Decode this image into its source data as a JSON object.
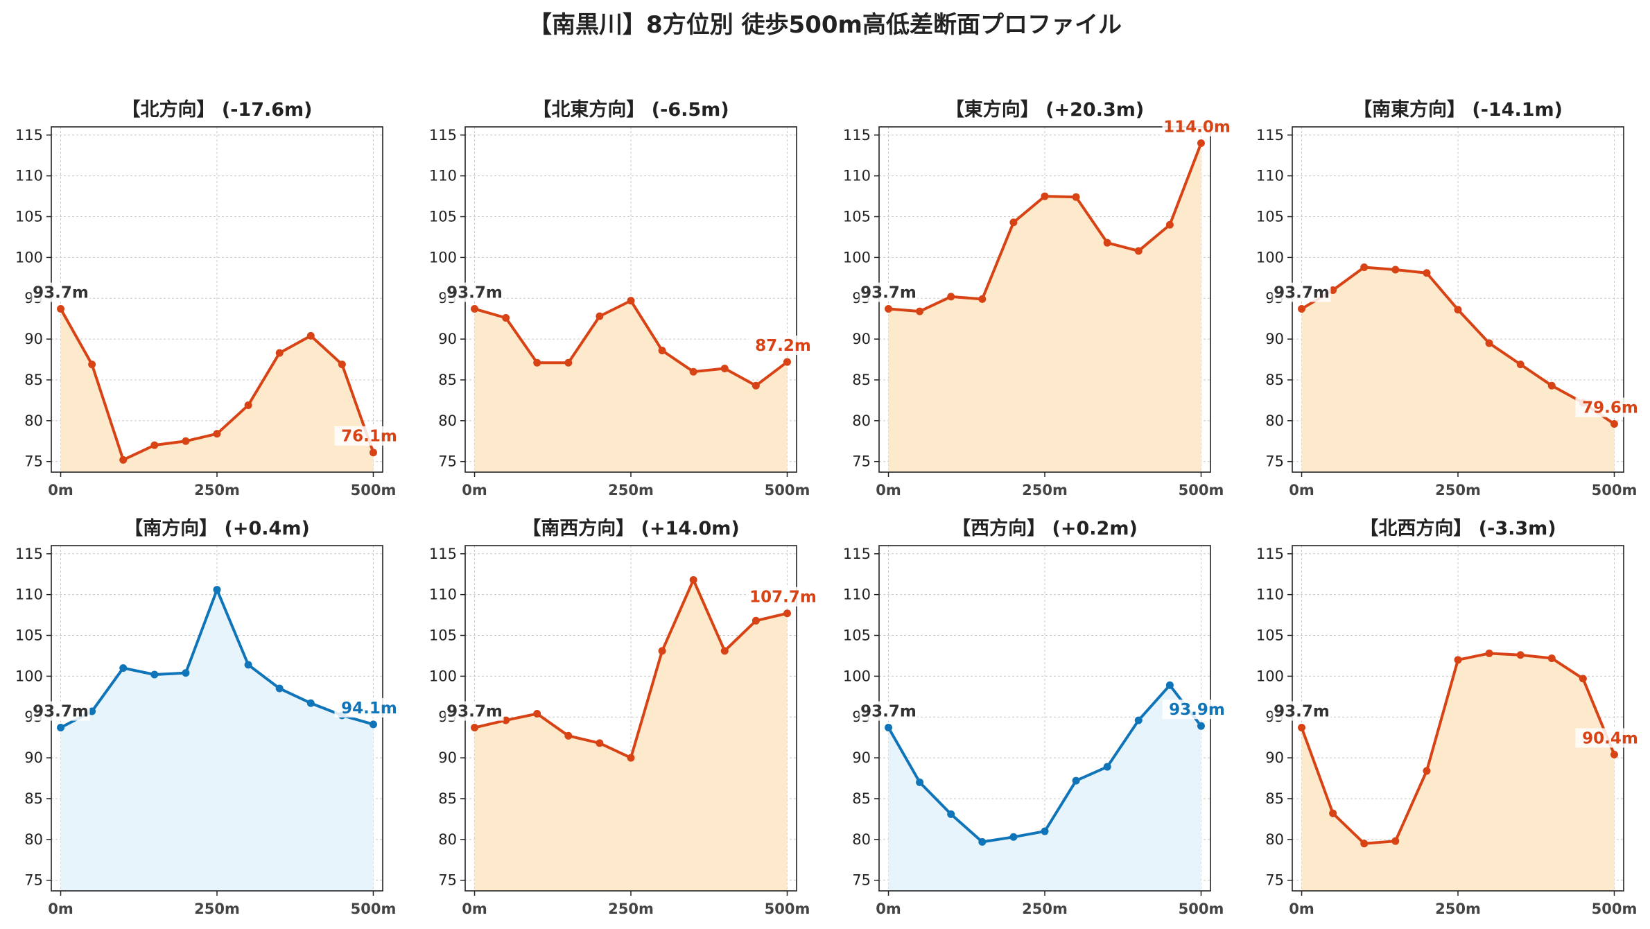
{
  "figure": {
    "title": "【南黒川】8方位別 徒歩500m高低差断面プロファイル"
  },
  "colors": {
    "down_line": "#d84315",
    "down_fill": "#fde9cc",
    "up_line": "#0f74b8",
    "up_fill": "#e8f4fb",
    "start_label": "#333333",
    "grid": "#c8c8c8",
    "axis": "#222222"
  },
  "chart_data": [
    {
      "type": "line",
      "title": "【北方向】 (-17.6m)",
      "style": "down",
      "x": [
        0,
        50,
        100,
        150,
        200,
        250,
        300,
        350,
        400,
        450,
        500
      ],
      "y": [
        93.7,
        86.9,
        75.2,
        77.0,
        77.5,
        78.4,
        81.9,
        88.3,
        90.4,
        86.9,
        76.1
      ],
      "xticks": [
        "0m",
        "250m",
        "500m"
      ],
      "yticks": [
        75,
        80,
        85,
        90,
        95,
        100,
        105,
        110,
        115
      ],
      "xlim": [
        -15,
        515
      ],
      "ylim": [
        73.7,
        116.0
      ],
      "grid": true,
      "start_label": "93.7m",
      "end_label": "76.1m"
    },
    {
      "type": "line",
      "title": "【北東方向】 (-6.5m)",
      "style": "down",
      "x": [
        0,
        50,
        100,
        150,
        200,
        250,
        300,
        350,
        400,
        450,
        500
      ],
      "y": [
        93.7,
        92.6,
        87.1,
        87.1,
        92.8,
        94.7,
        88.6,
        86.0,
        86.4,
        84.3,
        87.2
      ],
      "xticks": [
        "0m",
        "250m",
        "500m"
      ],
      "yticks": [
        75,
        80,
        85,
        90,
        95,
        100,
        105,
        110,
        115
      ],
      "xlim": [
        -15,
        515
      ],
      "ylim": [
        73.7,
        116.0
      ],
      "grid": true,
      "start_label": "93.7m",
      "end_label": "87.2m"
    },
    {
      "type": "line",
      "title": "【東方向】 (+20.3m)",
      "style": "down",
      "x": [
        0,
        50,
        100,
        150,
        200,
        250,
        300,
        350,
        400,
        450,
        500
      ],
      "y": [
        93.7,
        93.4,
        95.2,
        94.9,
        104.3,
        107.5,
        107.4,
        101.8,
        100.8,
        104.0,
        114.0
      ],
      "xticks": [
        "0m",
        "250m",
        "500m"
      ],
      "yticks": [
        75,
        80,
        85,
        90,
        95,
        100,
        105,
        110,
        115
      ],
      "xlim": [
        -15,
        515
      ],
      "ylim": [
        73.7,
        116.0
      ],
      "grid": true,
      "start_label": "93.7m",
      "end_label": "114.0m"
    },
    {
      "type": "line",
      "title": "【南東方向】 (-14.1m)",
      "style": "down",
      "x": [
        0,
        50,
        100,
        150,
        200,
        250,
        300,
        350,
        400,
        450,
        500
      ],
      "y": [
        93.7,
        96.0,
        98.8,
        98.5,
        98.1,
        93.6,
        89.5,
        86.9,
        84.3,
        82.2,
        79.6
      ],
      "xticks": [
        "0m",
        "250m",
        "500m"
      ],
      "yticks": [
        75,
        80,
        85,
        90,
        95,
        100,
        105,
        110,
        115
      ],
      "xlim": [
        -15,
        515
      ],
      "ylim": [
        73.7,
        116.0
      ],
      "grid": true,
      "start_label": "93.7m",
      "end_label": "79.6m"
    },
    {
      "type": "line",
      "title": "【南方向】 (+0.4m)",
      "style": "up",
      "x": [
        0,
        50,
        100,
        150,
        200,
        250,
        300,
        350,
        400,
        450,
        500
      ],
      "y": [
        93.7,
        95.7,
        101.0,
        100.2,
        100.4,
        110.6,
        101.4,
        98.5,
        96.7,
        95.2,
        94.1
      ],
      "xticks": [
        "0m",
        "250m",
        "500m"
      ],
      "yticks": [
        75,
        80,
        85,
        90,
        95,
        100,
        105,
        110,
        115
      ],
      "xlim": [
        -15,
        515
      ],
      "ylim": [
        73.7,
        116.0
      ],
      "grid": true,
      "start_label": "93.7m",
      "end_label": "94.1m"
    },
    {
      "type": "line",
      "title": "【南西方向】 (+14.0m)",
      "style": "down",
      "x": [
        0,
        50,
        100,
        150,
        200,
        250,
        300,
        350,
        400,
        450,
        500
      ],
      "y": [
        93.7,
        94.6,
        95.4,
        92.7,
        91.8,
        90.0,
        103.1,
        111.8,
        103.1,
        106.8,
        107.7
      ],
      "xticks": [
        "0m",
        "250m",
        "500m"
      ],
      "yticks": [
        75,
        80,
        85,
        90,
        95,
        100,
        105,
        110,
        115
      ],
      "xlim": [
        -15,
        515
      ],
      "ylim": [
        73.7,
        116.0
      ],
      "grid": true,
      "start_label": "93.7m",
      "end_label": "107.7m"
    },
    {
      "type": "line",
      "title": "【西方向】 (+0.2m)",
      "style": "up",
      "x": [
        0,
        50,
        100,
        150,
        200,
        250,
        300,
        350,
        400,
        450,
        500
      ],
      "y": [
        93.7,
        87.0,
        83.1,
        79.7,
        80.3,
        81.0,
        87.2,
        88.9,
        94.6,
        98.9,
        93.9
      ],
      "xticks": [
        "0m",
        "250m",
        "500m"
      ],
      "yticks": [
        75,
        80,
        85,
        90,
        95,
        100,
        105,
        110,
        115
      ],
      "xlim": [
        -15,
        515
      ],
      "ylim": [
        73.7,
        116.0
      ],
      "grid": true,
      "start_label": "93.7m",
      "end_label": "93.9m"
    },
    {
      "type": "line",
      "title": "【北西方向】 (-3.3m)",
      "style": "down",
      "x": [
        0,
        50,
        100,
        150,
        200,
        250,
        300,
        350,
        400,
        450,
        500
      ],
      "y": [
        93.7,
        83.2,
        79.5,
        79.8,
        88.4,
        102.0,
        102.8,
        102.6,
        102.2,
        99.7,
        90.4
      ],
      "xticks": [
        "0m",
        "250m",
        "500m"
      ],
      "yticks": [
        75,
        80,
        85,
        90,
        95,
        100,
        105,
        110,
        115
      ],
      "xlim": [
        -15,
        515
      ],
      "ylim": [
        73.7,
        116.0
      ],
      "grid": true,
      "start_label": "93.7m",
      "end_label": "90.4m"
    }
  ]
}
